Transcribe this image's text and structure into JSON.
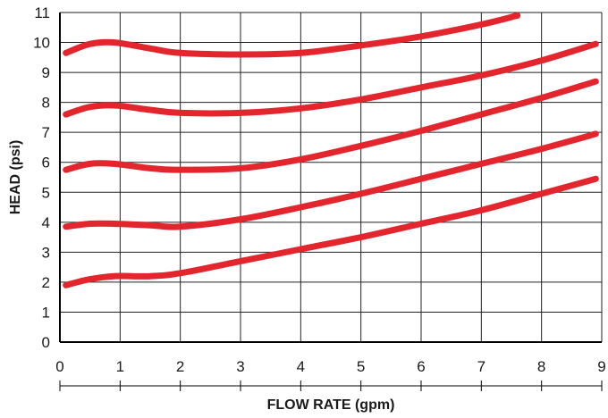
{
  "chart_data": {
    "type": "line",
    "title": "",
    "xlabel": "FLOW RATE (gpm)",
    "ylabel": "HEAD (psi)",
    "xlim": [
      0,
      9
    ],
    "ylim": [
      0,
      11
    ],
    "xticks": [
      "0",
      "1",
      "2",
      "3",
      "4",
      "5",
      "6",
      "7",
      "8",
      "9"
    ],
    "yticks": [
      "0",
      "1",
      "2",
      "3",
      "4",
      "5",
      "6",
      "7",
      "8",
      "9",
      "10",
      "11"
    ],
    "grid": true,
    "legend": "none",
    "line_color": "#e3262d",
    "series": [
      {
        "x": [
          0.1,
          0.5,
          0.9,
          1.5,
          2.0,
          3.0,
          4.0,
          5.0,
          6.0,
          7.0,
          7.6
        ],
        "y": [
          9.65,
          9.95,
          10.0,
          9.8,
          9.65,
          9.6,
          9.65,
          9.9,
          10.2,
          10.6,
          10.9
        ]
      },
      {
        "x": [
          0.1,
          0.5,
          0.9,
          1.5,
          2.0,
          3.0,
          4.0,
          5.0,
          6.0,
          7.0,
          8.0,
          8.9
        ],
        "y": [
          7.6,
          7.85,
          7.9,
          7.75,
          7.65,
          7.65,
          7.8,
          8.1,
          8.5,
          8.9,
          9.4,
          9.95
        ]
      },
      {
        "x": [
          0.1,
          0.5,
          0.9,
          1.5,
          2.0,
          3.0,
          4.0,
          5.0,
          6.0,
          7.0,
          8.0,
          8.9
        ],
        "y": [
          5.75,
          5.95,
          5.95,
          5.8,
          5.75,
          5.8,
          6.1,
          6.55,
          7.05,
          7.6,
          8.15,
          8.7
        ]
      },
      {
        "x": [
          0.1,
          0.5,
          0.9,
          1.5,
          2.0,
          3.0,
          4.0,
          5.0,
          6.0,
          7.0,
          8.0,
          8.9
        ],
        "y": [
          3.85,
          3.95,
          3.95,
          3.9,
          3.85,
          4.1,
          4.5,
          4.95,
          5.45,
          5.95,
          6.45,
          6.95
        ]
      },
      {
        "x": [
          0.1,
          0.5,
          0.9,
          1.5,
          2.0,
          3.0,
          4.0,
          5.0,
          6.0,
          7.0,
          8.0,
          8.9
        ],
        "y": [
          1.9,
          2.1,
          2.2,
          2.2,
          2.3,
          2.7,
          3.1,
          3.5,
          3.95,
          4.4,
          4.95,
          5.45
        ]
      }
    ]
  }
}
